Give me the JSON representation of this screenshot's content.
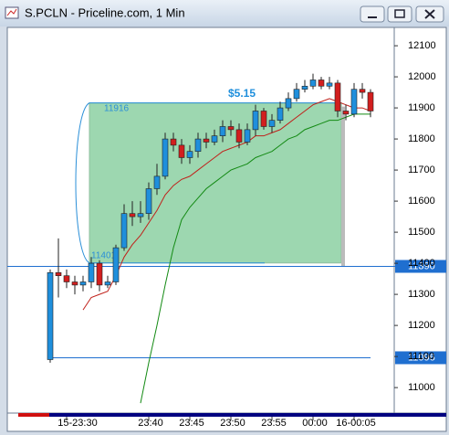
{
  "chart_data": {
    "type": "candlestick",
    "title": "S.PCLN - Priceline.com, 1 Min",
    "categories": [
      null,
      null,
      "15-23:30",
      null,
      null,
      null,
      null,
      null,
      null,
      null,
      null,
      null,
      "23:40",
      null,
      null,
      null,
      null,
      "23:45",
      null,
      null,
      null,
      null,
      "23:50",
      null,
      null,
      null,
      null,
      "23:55",
      null,
      null,
      null,
      null,
      "00:00",
      null,
      null,
      null,
      null,
      "16-00:05",
      null,
      null
    ],
    "open": [
      11090,
      11370,
      11360,
      11340,
      11330,
      11340,
      11400,
      11330,
      11340,
      11450,
      11560,
      11550,
      11560,
      11640,
      11680,
      11800,
      11780,
      11740,
      11760,
      11800,
      11790,
      11810,
      11840,
      11830,
      11790,
      11830,
      11890,
      11840,
      11860,
      11900,
      11930,
      11960,
      11970,
      11990,
      11970,
      11980,
      11890,
      11880,
      11960,
      11950
    ],
    "high": [
      11380,
      11480,
      11380,
      11360,
      11360,
      11420,
      11410,
      11360,
      11460,
      11590,
      11600,
      11600,
      11660,
      11720,
      11820,
      11820,
      11800,
      11780,
      11820,
      11820,
      11830,
      11860,
      11860,
      11850,
      11850,
      11910,
      11900,
      11880,
      11920,
      11950,
      11980,
      11990,
      12010,
      12000,
      12000,
      11990,
      11910,
      11980,
      11980,
      11960
    ],
    "low": [
      11080,
      11290,
      11320,
      11300,
      11310,
      11320,
      11310,
      11320,
      11330,
      11440,
      11520,
      11530,
      11540,
      11620,
      11670,
      11760,
      11720,
      11720,
      11740,
      11770,
      11780,
      11790,
      11810,
      11770,
      11780,
      11810,
      11830,
      11820,
      11850,
      11890,
      11920,
      11950,
      11960,
      11960,
      11960,
      11870,
      11860,
      11870,
      11930,
      11870
    ],
    "close": [
      11370,
      11360,
      11340,
      11330,
      11340,
      11400,
      11330,
      11340,
      11450,
      11560,
      11550,
      11560,
      11640,
      11680,
      11800,
      11780,
      11740,
      11760,
      11800,
      11790,
      11810,
      11840,
      11830,
      11790,
      11830,
      11890,
      11840,
      11860,
      11900,
      11930,
      11960,
      11970,
      11990,
      11970,
      11980,
      11890,
      11880,
      11960,
      11950,
      11890
    ],
    "up_color": "#1f8fdc",
    "down_color": "#d21e1e",
    "series": [
      {
        "color": "#c0201a",
        "values": [
          null,
          null,
          null,
          null,
          11250,
          11290,
          11300,
          11310,
          11360,
          11420,
          11460,
          11490,
          11530,
          11570,
          11620,
          11650,
          11670,
          11680,
          11700,
          11720,
          11740,
          11760,
          11770,
          11780,
          11790,
          11810,
          11810,
          11820,
          11830,
          11850,
          11870,
          11890,
          11910,
          11920,
          11930,
          11920,
          11910,
          11900,
          11900,
          11890
        ]
      },
      {
        "color": "#138a13",
        "values": [
          null,
          null,
          null,
          null,
          null,
          null,
          null,
          null,
          null,
          null,
          null,
          10950,
          11080,
          11200,
          11330,
          11450,
          11540,
          11580,
          11610,
          11640,
          11660,
          11680,
          11700,
          11710,
          11720,
          11740,
          11750,
          11760,
          11780,
          11800,
          11810,
          11830,
          11840,
          11850,
          11860,
          11860,
          11870,
          11880,
          11880,
          11880
        ]
      }
    ],
    "ylim": [
      10918,
      12159
    ],
    "yticks": [
      11000,
      11100,
      11200,
      11300,
      11400,
      11500,
      11600,
      11700,
      11800,
      11900,
      12000,
      12100
    ],
    "hlines": [
      11390,
      11096
    ],
    "box": {
      "top": 11916,
      "bottom": 11401,
      "label": "$5.15",
      "color": "#9dd7b0"
    }
  }
}
